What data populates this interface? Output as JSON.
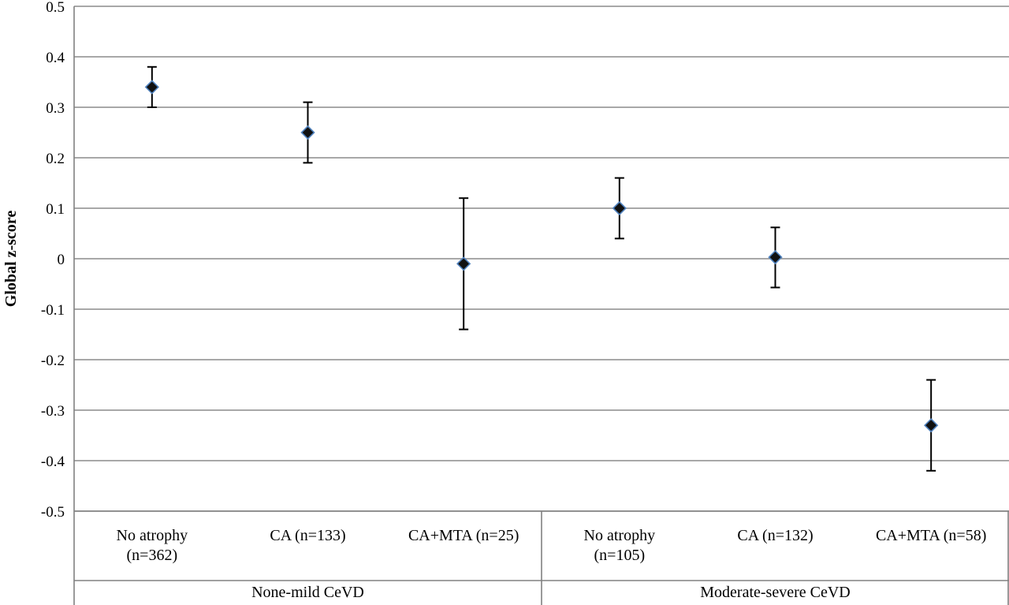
{
  "chart_data": {
    "type": "scatter",
    "ylabel": "Global z-score",
    "ylim": [
      -0.5,
      0.5
    ],
    "ytick_step": 0.1,
    "yticks": [
      "0.5",
      "0.4",
      "0.3",
      "0.2",
      "0.1",
      "0",
      "-0.1",
      "-0.2",
      "-0.3",
      "-0.4",
      "-0.5"
    ],
    "grid": true,
    "groups": [
      {
        "label": "None-mild CeVD",
        "categories": [
          0,
          1,
          2
        ]
      },
      {
        "label": "Moderate-severe CeVD",
        "categories": [
          3,
          4,
          5
        ]
      }
    ],
    "categories": [
      {
        "lines": [
          "No atrophy",
          "(n=362)"
        ],
        "group": "None-mild CeVD"
      },
      {
        "lines": [
          "CA (n=133)"
        ],
        "group": "None-mild CeVD"
      },
      {
        "lines": [
          "CA+MTA (n=25)"
        ],
        "group": "None-mild CeVD"
      },
      {
        "lines": [
          "No atrophy",
          "(n=105)"
        ],
        "group": "Moderate-severe CeVD"
      },
      {
        "lines": [
          "CA (n=132)"
        ],
        "group": "Moderate-severe CeVD"
      },
      {
        "lines": [
          "CA+MTA (n=58)"
        ],
        "group": "Moderate-severe CeVD"
      }
    ],
    "series": [
      {
        "values": [
          0.34,
          0.25,
          -0.01,
          0.1,
          0.003,
          -0.33
        ],
        "error_low": [
          0.3,
          0.19,
          -0.14,
          0.04,
          -0.057,
          -0.42
        ],
        "error_high": [
          0.38,
          0.31,
          0.12,
          0.16,
          0.062,
          -0.24
        ],
        "marker": "diamond",
        "marker_color": "#111111",
        "marker_edge_color": "#4f81bd"
      }
    ],
    "colors": {
      "grid": "#8c8c8c",
      "axis": "#808080",
      "error_bar": "#000000"
    }
  }
}
